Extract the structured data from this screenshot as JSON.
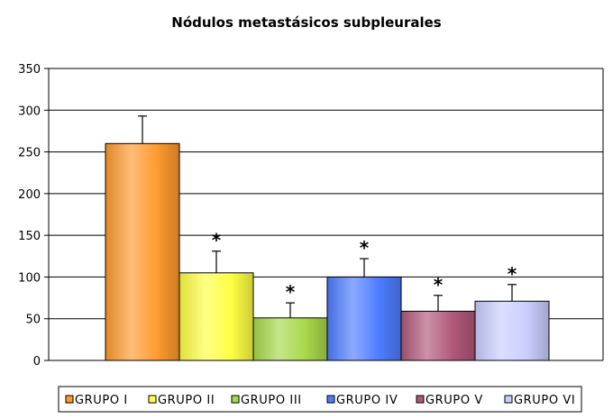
{
  "chart_data": {
    "type": "bar",
    "title": "Nódulos metastásicos subpleurales",
    "xlabel": "",
    "ylabel": "",
    "ylim": [
      0,
      350
    ],
    "yticks": [
      0,
      50,
      100,
      150,
      200,
      250,
      300,
      350
    ],
    "categories": [
      "GRUPO I",
      "GRUPO II",
      "GRUPO III",
      "GRUPO IV",
      "GRUPO V",
      "GRUPO VI"
    ],
    "values": [
      260,
      105,
      51,
      100,
      59,
      71
    ],
    "error_upper": [
      33,
      26,
      18,
      22,
      19,
      20
    ],
    "significance": [
      "",
      "*",
      "*",
      "*",
      "*",
      "*"
    ],
    "colors": [
      "#ff9a2e",
      "#ffff44",
      "#a8d84a",
      "#4d7cff",
      "#b0587a",
      "#c9ceff"
    ],
    "grid": true,
    "legend_position": "bottom"
  }
}
